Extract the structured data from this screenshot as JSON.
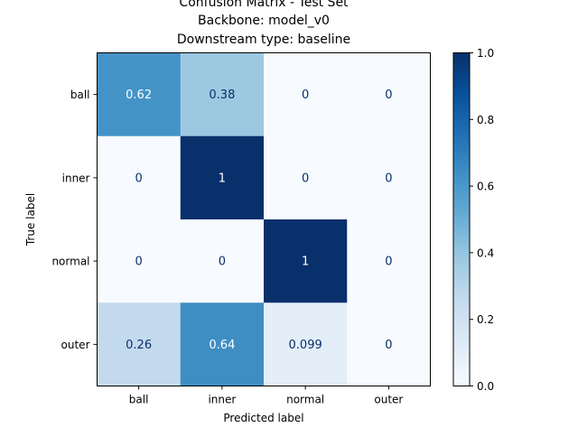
{
  "chart_data": {
    "type": "heatmap",
    "title_lines": [
      "Confusion Matrix - Test Set",
      "Backbone: model_v0",
      "Downstream type: baseline"
    ],
    "xlabel": "Predicted label",
    "ylabel": "True label",
    "x_categories": [
      "ball",
      "inner",
      "normal",
      "outer"
    ],
    "y_categories": [
      "ball",
      "inner",
      "normal",
      "outer"
    ],
    "values": [
      [
        0.62,
        0.38,
        0,
        0
      ],
      [
        0,
        1,
        0,
        0
      ],
      [
        0,
        0,
        1,
        0
      ],
      [
        0.26,
        0.64,
        0.099,
        0
      ]
    ],
    "cell_labels": [
      [
        "0.62",
        "0.38",
        "0",
        "0"
      ],
      [
        "0",
        "1",
        "0",
        "0"
      ],
      [
        "0",
        "0",
        "1",
        "0"
      ],
      [
        "0.26",
        "0.64",
        "0.099",
        "0"
      ]
    ],
    "colorbar": {
      "range": [
        0.0,
        1.0
      ],
      "ticks": [
        0.0,
        0.2,
        0.4,
        0.6,
        0.8,
        1.0
      ],
      "tick_labels": [
        "0.0",
        "0.2",
        "0.4",
        "0.6",
        "0.8",
        "1.0"
      ]
    },
    "colormap": "Blues",
    "colors": {
      "text_dark": "#08306b",
      "text_light": "#ffffff",
      "axis": "#000000"
    },
    "grid": false
  }
}
